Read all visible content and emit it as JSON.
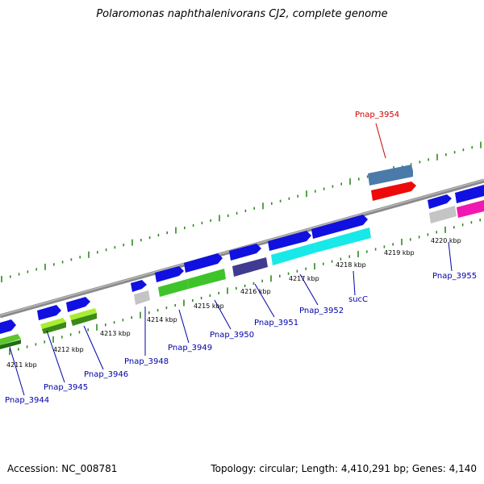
{
  "title": "Polaromonas naphthalenivorans CJ2, complete genome",
  "accession_text": "Accession: NC_008781",
  "summary_text": "Topology: circular; Length: 4,410,291 bp; Genes: 4,140",
  "colors": {
    "backbone": "#8a8a8a",
    "tick_major": "#2e8b1e",
    "blue_gene": "#1010e0",
    "label_blue": "#0000aa",
    "label_red": "#cc0000"
  },
  "tick_labels": [
    "4211 kbp",
    "4212 kbp",
    "4213 kbp",
    "4214 kbp",
    "4215 kbp",
    "4216 kbp",
    "4217 kbp",
    "4218 kbp",
    "4219 kbp",
    "4220 kbp"
  ],
  "gene_labels": [
    {
      "text": "Pnap_3944",
      "color": "blue"
    },
    {
      "text": "Pnap_3945",
      "color": "blue"
    },
    {
      "text": "Pnap_3946",
      "color": "blue"
    },
    {
      "text": "Pnap_3948",
      "color": "blue"
    },
    {
      "text": "Pnap_3949",
      "color": "blue"
    },
    {
      "text": "Pnap_3950",
      "color": "blue"
    },
    {
      "text": "Pnap_3951",
      "color": "blue"
    },
    {
      "text": "Pnap_3952",
      "color": "blue"
    },
    {
      "text": "sucC",
      "color": "blue"
    },
    {
      "text": "Pnap_3954",
      "color": "red"
    },
    {
      "text": "Pnap_3955",
      "color": "blue"
    }
  ]
}
